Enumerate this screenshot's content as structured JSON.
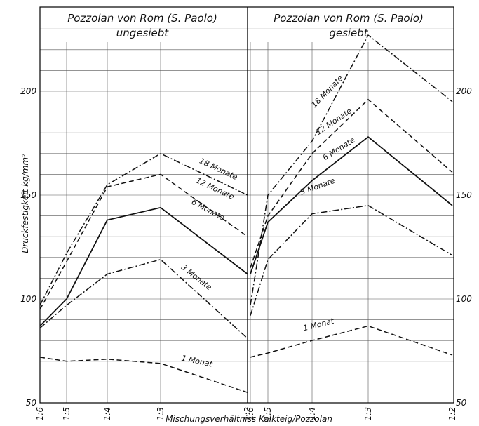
{
  "chart_data": [
    {
      "type": "line",
      "title": "Pozzolan von Rom (S. Paolo)",
      "subtitle": "ungesiebt",
      "categories": [
        "1:6",
        "1:5",
        "1:4",
        "1:3",
        "1:2"
      ],
      "ylabel": "Druckfestigkeit kg/mm²",
      "xlabel": "Mischungsverhältniss Kalkteig/Pozzolan",
      "ylim": [
        50,
        230
      ],
      "yticks": [
        50,
        100,
        150,
        200
      ],
      "grid": true,
      "series": [
        {
          "name": "18 Monate",
          "style": "dash-dot",
          "values": [
            97,
            122,
            155,
            170,
            150
          ]
        },
        {
          "name": "12 Monate",
          "style": "dashed",
          "values": [
            95,
            118,
            154,
            160,
            130
          ]
        },
        {
          "name": "6 Monate",
          "style": "solid",
          "values": [
            87,
            100,
            138,
            144,
            112
          ]
        },
        {
          "name": "3 Monate",
          "style": "dash-dot",
          "values": [
            86,
            97,
            112,
            119,
            81
          ]
        },
        {
          "name": "1 Monat",
          "style": "dashed",
          "values": [
            72,
            70,
            71,
            69,
            55
          ]
        }
      ]
    },
    {
      "type": "line",
      "title": "Pozzolan von Rom (S. Paolo)",
      "subtitle": "gesiebt",
      "categories": [
        "1:6",
        "1:5",
        "1:4",
        "1:3",
        "1:2"
      ],
      "ylim": [
        50,
        230
      ],
      "yticks": [
        50,
        100,
        150,
        200
      ],
      "grid": true,
      "series": [
        {
          "name": "18 Monate",
          "style": "dash-dot",
          "values": [
            97,
            150,
            176,
            227,
            195
          ]
        },
        {
          "name": "12 Monate",
          "style": "dashed",
          "values": [
            115,
            140,
            170,
            196,
            161
          ]
        },
        {
          "name": "6 Monate",
          "style": "solid",
          "values": [
            112,
            137,
            157,
            178,
            145
          ]
        },
        {
          "name": "3 Monate",
          "style": "dash-dot",
          "values": [
            92,
            119,
            141,
            145,
            121
          ]
        },
        {
          "name": "1 Monat",
          "style": "dashed",
          "values": [
            72,
            74,
            80,
            87,
            73
          ]
        }
      ]
    }
  ]
}
